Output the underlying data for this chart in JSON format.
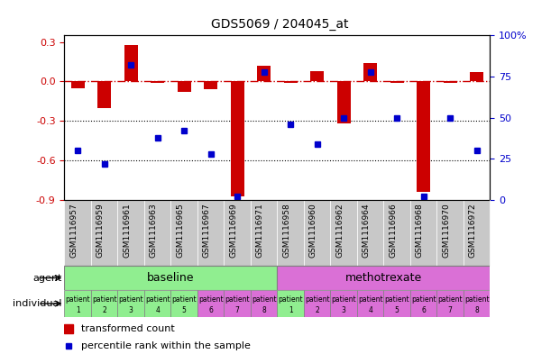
{
  "title": "GDS5069 / 204045_at",
  "samples": [
    "GSM1116957",
    "GSM1116959",
    "GSM1116961",
    "GSM1116963",
    "GSM1116965",
    "GSM1116967",
    "GSM1116969",
    "GSM1116971",
    "GSM1116958",
    "GSM1116960",
    "GSM1116962",
    "GSM1116964",
    "GSM1116966",
    "GSM1116968",
    "GSM1116970",
    "GSM1116972"
  ],
  "red_bars": [
    -0.05,
    -0.2,
    0.28,
    -0.01,
    -0.08,
    -0.06,
    -0.87,
    0.12,
    -0.01,
    0.08,
    -0.32,
    0.14,
    -0.01,
    -0.84,
    -0.01,
    0.07
  ],
  "blue_dot_percentile": [
    30,
    22,
    82,
    38,
    42,
    28,
    2,
    78,
    46,
    34,
    50,
    78,
    50,
    2,
    50,
    30
  ],
  "ylim_left": [
    -0.9,
    0.35
  ],
  "ylim_right": [
    0,
    100
  ],
  "yticks_left": [
    -0.9,
    -0.6,
    -0.3,
    0.0,
    0.3
  ],
  "yticks_right": [
    0,
    25,
    50,
    75,
    100
  ],
  "ytick_right_labels": [
    "0",
    "25",
    "50",
    "75",
    "100%"
  ],
  "baseline_indices": [
    0,
    1,
    2,
    3,
    4,
    5,
    6,
    7
  ],
  "methotrexate_indices": [
    8,
    9,
    10,
    11,
    12,
    13,
    14,
    15
  ],
  "agent_label": "agent",
  "individual_label": "individual",
  "baseline_color": "#90EE90",
  "methotrexate_color": "#DA70D6",
  "sample_bg_color": "#C8C8C8",
  "bar_color": "#CC0000",
  "dot_color": "#0000CC",
  "ref_line_color": "#CC0000",
  "legend_bar_label": "transformed count",
  "legend_dot_label": "percentile rank within the sample",
  "indiv_colors": [
    "#90EE90",
    "#90EE90",
    "#90EE90",
    "#90EE90",
    "#90EE90",
    "#DA70D6",
    "#DA70D6",
    "#DA70D6",
    "#90EE90",
    "#DA70D6",
    "#DA70D6",
    "#DA70D6",
    "#DA70D6",
    "#DA70D6",
    "#DA70D6",
    "#DA70D6"
  ]
}
